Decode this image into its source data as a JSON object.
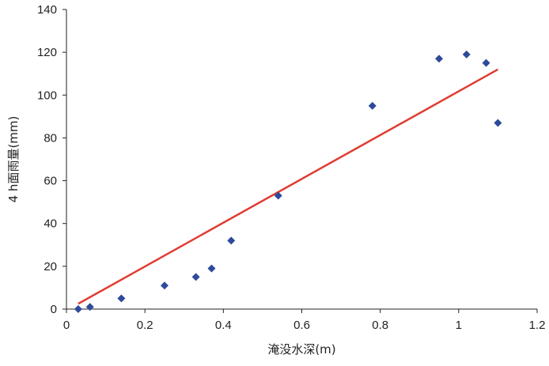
{
  "chart_data": {
    "type": "scatter",
    "title": "",
    "xlabel": "淹没水深(m)",
    "ylabel": "4 h面雨量(mm)",
    "xlim": [
      0,
      1.2
    ],
    "ylim": [
      0,
      140
    ],
    "x_ticks": [
      0,
      0.2,
      0.4,
      0.6,
      0.8,
      1,
      1.2
    ],
    "x_tick_labels": [
      "0",
      "0.2",
      "0.4",
      "0.6",
      "0.8",
      "1",
      "1.2"
    ],
    "y_ticks": [
      0,
      20,
      40,
      60,
      80,
      100,
      120,
      140
    ],
    "y_tick_labels": [
      "0",
      "20",
      "40",
      "60",
      "80",
      "100",
      "120",
      "140"
    ],
    "grid": false,
    "legend": "none",
    "series": [
      {
        "type": "scatter",
        "marker": "diamond",
        "color": "#2E4A9B",
        "points": [
          {
            "x": 0.03,
            "y": 0
          },
          {
            "x": 0.06,
            "y": 1
          },
          {
            "x": 0.14,
            "y": 5
          },
          {
            "x": 0.25,
            "y": 11
          },
          {
            "x": 0.33,
            "y": 15
          },
          {
            "x": 0.37,
            "y": 19
          },
          {
            "x": 0.42,
            "y": 32
          },
          {
            "x": 0.54,
            "y": 53
          },
          {
            "x": 0.78,
            "y": 95
          },
          {
            "x": 0.95,
            "y": 117
          },
          {
            "x": 1.02,
            "y": 119
          },
          {
            "x": 1.07,
            "y": 115
          },
          {
            "x": 1.1,
            "y": 87
          }
        ]
      },
      {
        "type": "line",
        "color": "#E03C31",
        "points": [
          {
            "x": 0.03,
            "y": 2.5
          },
          {
            "x": 1.1,
            "y": 112
          }
        ]
      }
    ]
  }
}
